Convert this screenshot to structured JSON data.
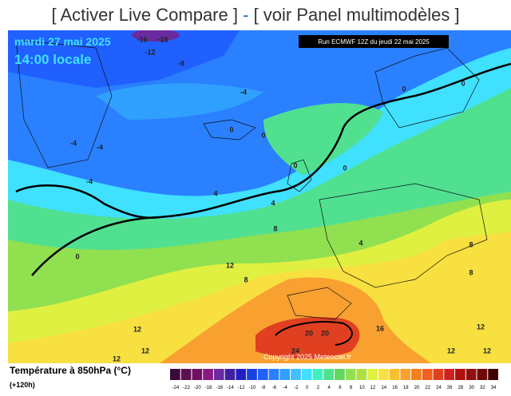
{
  "header": {
    "links": [
      "[ Activer Live Compare ]",
      "-",
      "[ voir Panel multimodèles ]"
    ]
  },
  "map": {
    "date": "mardi 27 mai 2025",
    "time": "14:00 locale",
    "run": "Run ECMWF 12Z du jeudi 22 mai 2025",
    "copyright": "Copyright 2025 Meteociel.fr",
    "contour_labels": [
      -16,
      -16,
      -12,
      -8,
      -4,
      -4,
      -4,
      -4,
      0,
      0,
      0,
      0,
      0,
      0,
      0,
      4,
      4,
      4,
      8,
      8,
      8,
      12,
      12,
      12,
      12,
      12,
      12,
      12,
      16,
      20,
      20,
      24,
      8
    ]
  },
  "legend": {
    "title": "Température à 850hPa (°C)",
    "lead": "(+120h)",
    "scale": [
      {
        "value": -24,
        "color": "#3a0a3a"
      },
      {
        "value": -22,
        "color": "#5a1050"
      },
      {
        "value": -20,
        "color": "#701060"
      },
      {
        "value": -18,
        "color": "#8a1a80"
      },
      {
        "value": -16,
        "color": "#6a2aa0"
      },
      {
        "value": -14,
        "color": "#4020a0"
      },
      {
        "value": -12,
        "color": "#2020c0"
      },
      {
        "value": -10,
        "color": "#1a40e0"
      },
      {
        "value": -8,
        "color": "#2060ff"
      },
      {
        "value": -6,
        "color": "#2a80ff"
      },
      {
        "value": -4,
        "color": "#30a0ff"
      },
      {
        "value": -2,
        "color": "#40c0ff"
      },
      {
        "value": 0,
        "color": "#40e0ff"
      },
      {
        "value": 2,
        "color": "#40f0c0"
      },
      {
        "value": 4,
        "color": "#50e090"
      },
      {
        "value": 6,
        "color": "#60d860"
      },
      {
        "value": 8,
        "color": "#90e050"
      },
      {
        "value": 10,
        "color": "#b0e040"
      },
      {
        "value": 12,
        "color": "#e0f040"
      },
      {
        "value": 14,
        "color": "#f8e040"
      },
      {
        "value": 16,
        "color": "#f8c030"
      },
      {
        "value": 18,
        "color": "#f8a030"
      },
      {
        "value": 20,
        "color": "#f08020"
      },
      {
        "value": 22,
        "color": "#f06020"
      },
      {
        "value": 24,
        "color": "#e04020"
      },
      {
        "value": 26,
        "color": "#d02020"
      },
      {
        "value": 28,
        "color": "#b01010"
      },
      {
        "value": 30,
        "color": "#901010"
      },
      {
        "value": 32,
        "color": "#700808"
      },
      {
        "value": 34,
        "color": "#400000"
      }
    ]
  }
}
